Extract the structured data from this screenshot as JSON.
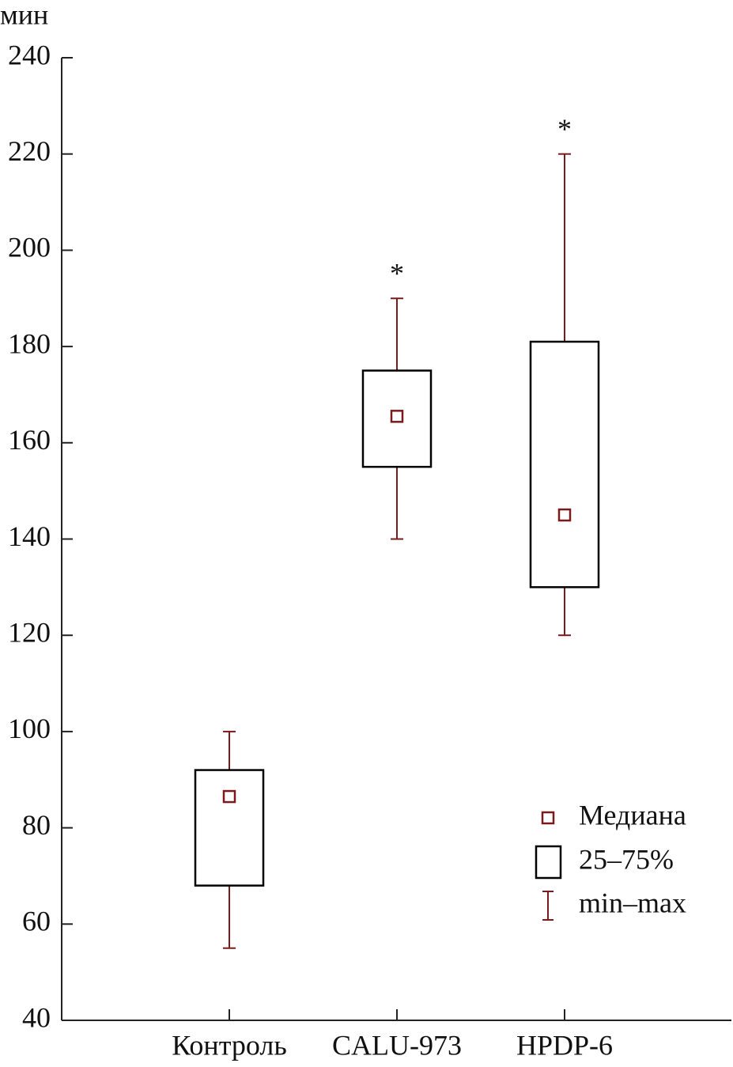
{
  "chart_data": {
    "type": "box",
    "y_label": "мин",
    "categories": [
      "Контроль",
      "CALU-973",
      "HPDP-6"
    ],
    "min": [
      55,
      140,
      120
    ],
    "q1": [
      68,
      155,
      130
    ],
    "median": [
      86.5,
      165.5,
      145
    ],
    "q3": [
      92,
      175,
      181
    ],
    "max": [
      100,
      190,
      220
    ],
    "markers": [
      null,
      "*",
      "*"
    ],
    "box_color": "#000000",
    "whisker_color": "#7a1a1a",
    "legend": [
      "Медиана",
      "25–75%",
      "min–max"
    ],
    "legend_position": "lower right",
    "ylim": [
      40,
      240
    ],
    "yticks": [
      40,
      60,
      80,
      100,
      120,
      140,
      160,
      180,
      200,
      220,
      240
    ],
    "grid": false
  }
}
